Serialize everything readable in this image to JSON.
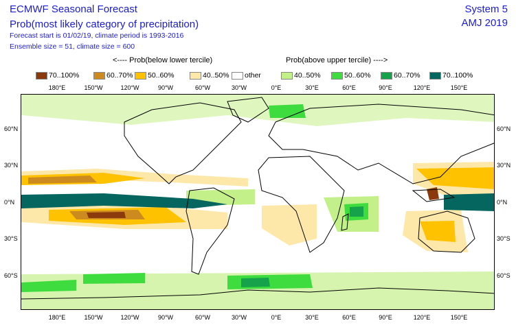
{
  "header": {
    "title": "ECMWF Seasonal Forecast",
    "subtitle": "Prob(most likely category of precipitation)",
    "forecast_line": "Forecast start is 01/02/19, climate period is 1993-2016",
    "ensemble_line": "Ensemble size = 51, climate size = 600",
    "system": "System 5",
    "period": "AMJ 2019"
  },
  "legend": {
    "below_header": "<---- Prob(below lower tercile)",
    "above_header": "Prob(above upper tercile) ---->",
    "items": [
      {
        "label": "70..100%",
        "color": "#8b3a0e"
      },
      {
        "label": "60..70%",
        "color": "#cd8a1e"
      },
      {
        "label": "50..60%",
        "color": "#ffc200"
      },
      {
        "label": "40..50%",
        "color": "#fde8aa"
      },
      {
        "label": "other",
        "color": "#ffffff"
      },
      {
        "label": "40..50%",
        "color": "#c4f08a"
      },
      {
        "label": "50..60%",
        "color": "#3fdc3f"
      },
      {
        "label": "60..70%",
        "color": "#15a24a"
      },
      {
        "label": "70..100%",
        "color": "#056660"
      }
    ]
  },
  "map": {
    "lon_labels": [
      "180°E",
      "150°W",
      "120°W",
      "90°W",
      "60°W",
      "30°W",
      "0°E",
      "30°E",
      "60°E",
      "90°E",
      "120°E",
      "150°E"
    ],
    "lat_labels": [
      "60°N",
      "30°N",
      "0°N",
      "30°S",
      "60°S"
    ]
  }
}
